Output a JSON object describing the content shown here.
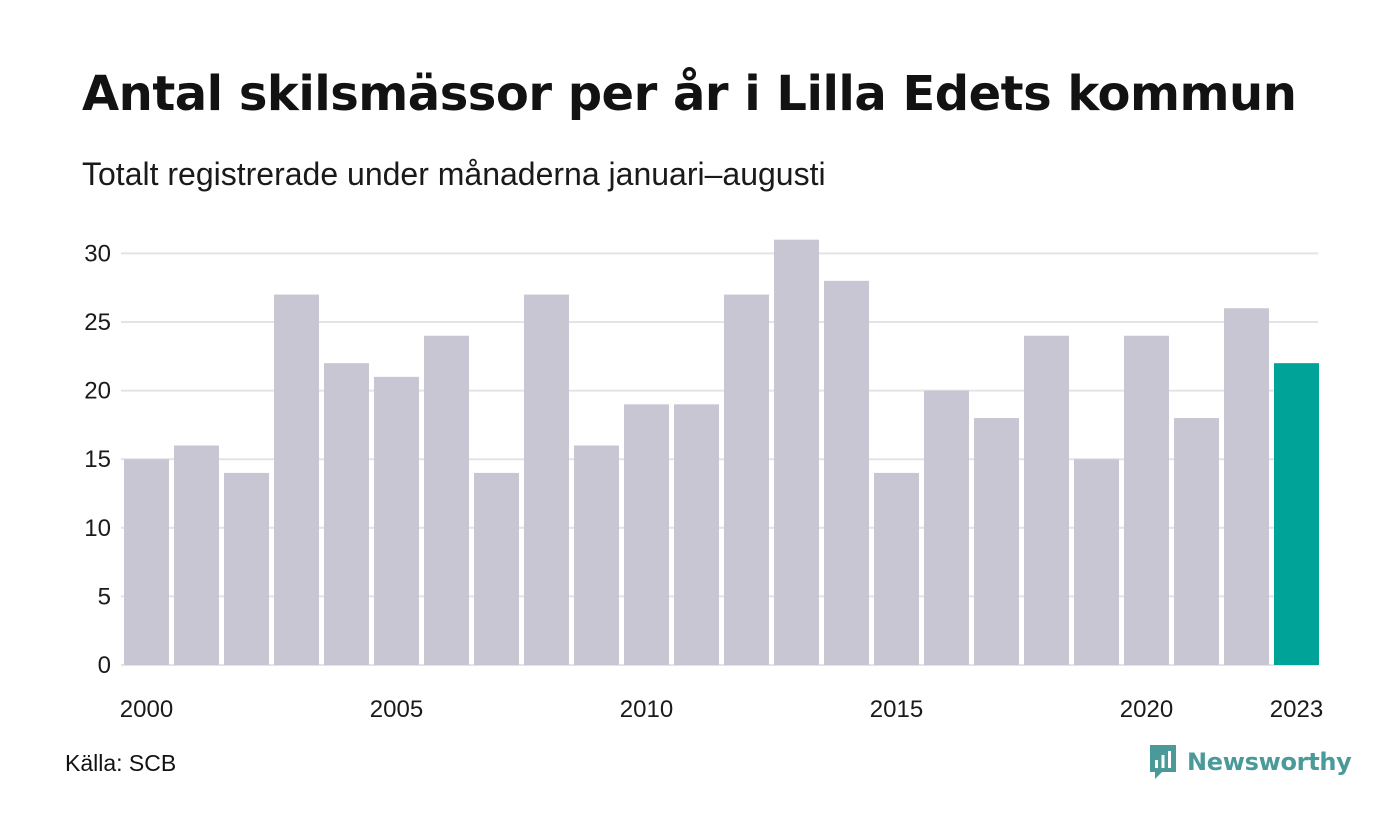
{
  "header": {
    "title": "Antal skilsmässor per år i Lilla Edets kommun",
    "subtitle": "Totalt registrerade under månaderna januari–augusti"
  },
  "footer": {
    "source": "Källa: SCB",
    "logo_text": "Newsworthy",
    "logo_icon": "newsworthy-bar-chart-bubble-icon"
  },
  "colors": {
    "bar": "#c8c6d3",
    "highlight": "#00a398",
    "grid": "#e4e4e8",
    "logo": "#4a9a9a"
  },
  "chart_data": {
    "type": "bar",
    "title": "Antal skilsmässor per år i Lilla Edets kommun",
    "subtitle": "Totalt registrerade under månaderna januari–augusti",
    "categories": [
      2000,
      2001,
      2002,
      2003,
      2004,
      2005,
      2006,
      2007,
      2008,
      2009,
      2010,
      2011,
      2012,
      2013,
      2014,
      2015,
      2016,
      2017,
      2018,
      2019,
      2020,
      2021,
      2022,
      2023
    ],
    "values": [
      15,
      16,
      14,
      27,
      22,
      21,
      24,
      14,
      27,
      16,
      19,
      19,
      27,
      31,
      28,
      14,
      20,
      18,
      24,
      15,
      24,
      18,
      26,
      22
    ],
    "highlight_category": 2023,
    "x_tick_labels": [
      "2000",
      "2005",
      "2010",
      "2015",
      "2020",
      "2023"
    ],
    "y_ticks": [
      0,
      5,
      10,
      15,
      20,
      25,
      30
    ],
    "ylim": [
      0,
      31
    ],
    "xlabel": "",
    "ylabel": "",
    "grid": "horizontal",
    "legend": "none"
  }
}
